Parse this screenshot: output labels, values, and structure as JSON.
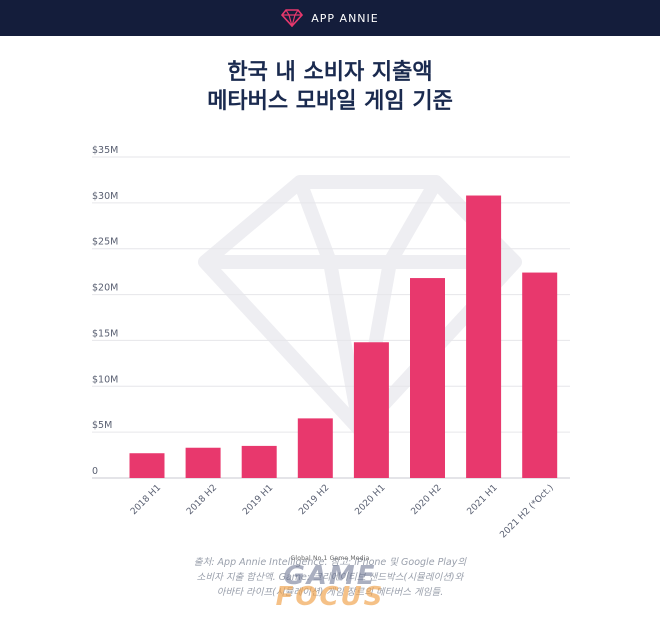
{
  "header": {
    "brand": "APP ANNIE"
  },
  "title_lines": [
    "한국 내 소비자 지출액",
    "메타버스 모바일 게임 기준"
  ],
  "chart_data": {
    "type": "bar",
    "categories": [
      "2018 H1",
      "2018 H2",
      "2019 H1",
      "2019 H2",
      "2020 H1",
      "2020 H2",
      "2021 H1",
      "2021 H2 (*Oct.)"
    ],
    "values": [
      2.7,
      3.3,
      3.5,
      6.5,
      14.8,
      21.8,
      30.8,
      22.4
    ],
    "y_ticks": [
      0,
      5,
      10,
      15,
      20,
      25,
      30,
      35
    ],
    "y_tick_labels": [
      "0",
      "$5M",
      "$10M",
      "$15M",
      "$20M",
      "$25M",
      "$30M",
      "$35M"
    ],
    "ylim": [
      0,
      35
    ],
    "ylabel": "",
    "xlabel": "",
    "grid": true,
    "bar_color": "#e8386d"
  },
  "footnote": [
    "출처: App Annie Intelligence. 참고: iPhone 및 Google Play의",
    "소비자 지출 합산액. Game: 크리에이티브 샌드박스(시뮬레이션)와",
    "아바타 라이프(시뮬레이션) 게임 장르의 메타버스 게임들."
  ],
  "watermark": {
    "tagline": "Global No.1 Game Media",
    "word1": "GAME",
    "word2": "FOCUS"
  }
}
